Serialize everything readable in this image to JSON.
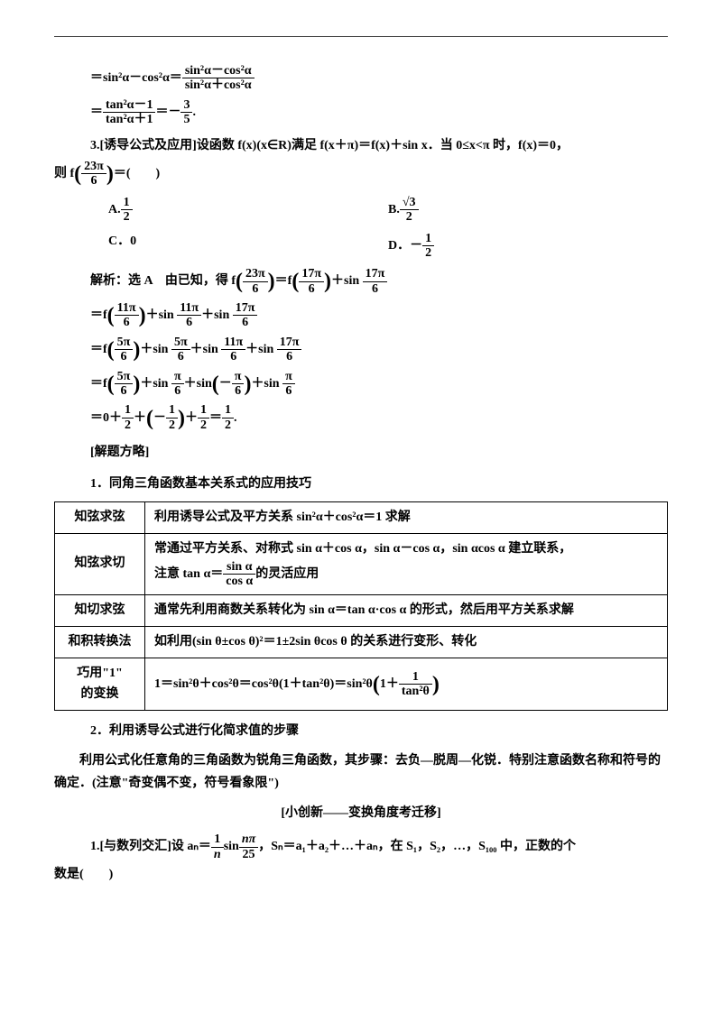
{
  "eq1": {
    "lhs_prefix": "＝sin²α－cos²α＝",
    "frac1_num": "sin²α－cos²α",
    "frac1_den": "sin²α＋cos²α"
  },
  "eq2": {
    "prefix": "＝",
    "frac_num": "tan²α－1",
    "frac_den": "tan²α＋1",
    "mid": "＝－",
    "r_num": "3",
    "r_den": "5",
    "suffix": "."
  },
  "p3": {
    "label": "3.[诱导公式及应用]",
    "text1": "设函数 f(x)(x∈R)满足 f(x＋π)＝f(x)＋sin x．当 0≤x<π 时，f(x)＝0，",
    "text2_pre": "则 f",
    "arg_num": "23π",
    "arg_den": "6",
    "text2_post": "＝(　　)"
  },
  "opts": {
    "A_label": "A.",
    "A_num": "1",
    "A_den": "2",
    "B_label": "B.",
    "B_num": "√3",
    "B_den": "2",
    "C": "C．0",
    "D_label": "D．－",
    "D_num": "1",
    "D_den": "2"
  },
  "sol": {
    "prefix": "解析：选 A　由已知，得 f",
    "s1a_num": "23π",
    "s1a_den": "6",
    "mid1": "＝f",
    "s1b_num": "17π",
    "s1b_den": "6",
    "mid2": "＋sin ",
    "s1c_num": "17π",
    "s1c_den": "6",
    "l2_pre": "＝f",
    "l2a_num": "11π",
    "l2a_den": "6",
    "l2_m1": "＋sin ",
    "l2b_num": "11π",
    "l2b_den": "6",
    "l2_m2": "＋sin ",
    "l2c_num": "17π",
    "l2c_den": "6",
    "l3_pre": "＝f",
    "l3a_num": "5π",
    "l3a_den": "6",
    "l3_m1": "＋sin ",
    "l3b_num": "5π",
    "l3b_den": "6",
    "l3_m2": "＋sin ",
    "l3c_num": "11π",
    "l3c_den": "6",
    "l3_m3": "＋sin ",
    "l3d_num": "17π",
    "l3d_den": "6",
    "l4_pre": "＝f",
    "l4a_num": "5π",
    "l4a_den": "6",
    "l4_m1": "＋sin ",
    "l4b_num": "π",
    "l4b_den": "6",
    "l4_m2": "＋sin",
    "l4_neg": "－",
    "l4c_num": "π",
    "l4c_den": "6",
    "l4_m3": "＋sin ",
    "l4d_num": "π",
    "l4d_den": "6",
    "l5_pre": "＝0＋",
    "l5a_num": "1",
    "l5a_den": "2",
    "l5_m1": "＋",
    "l5_neg": "－",
    "l5b_num": "1",
    "l5b_den": "2",
    "l5_m2": "＋",
    "l5c_num": "1",
    "l5c_den": "2",
    "l5_m3": "＝",
    "l5d_num": "1",
    "l5d_den": "2",
    "l5_end": "."
  },
  "strategy_title": "[解题方略]",
  "sec1_title": "1．同角三角函数基本关系式的应用技巧",
  "table": {
    "r1c1": "知弦求弦",
    "r1c2": "利用诱导公式及平方关系 sin²α＋cos²α＝1 求解",
    "r2c1": "知弦求切",
    "r2c2a": "常通过平方关系、对称式 sin α＋cos α，sin α－cos α，sin αcos α 建立联系，",
    "r2c2b_pre": "注意 tan α＝",
    "r2c2b_num": "sin α",
    "r2c2b_den": "cos α",
    "r2c2b_post": "的灵活应用",
    "r3c1": "知切求弦",
    "r3c2": "通常先利用商数关系转化为 sin α＝tan α·cos α 的形式，然后用平方关系求解",
    "r4c1": "和积转换法",
    "r4c2": "如利用(sin θ±cos θ)²＝1±2sin θcos θ 的关系进行变形、转化",
    "r5c1a": "巧用\"1\"",
    "r5c1b": "的变换",
    "r5c2_pre": "1＝sin²θ＋cos²θ＝cos²θ(1＋tan²θ)＝sin²θ",
    "r5c2_in": "1＋",
    "r5c2_num": "1",
    "r5c2_den": "tan²θ"
  },
  "sec2_title": "2．利用诱导公式进行化简求值的步骤",
  "sec2_body": "利用公式化任意角的三角函数为锐角三角函数，其步骤：去负—脱周—化锐．特别注意函数名称和符号的确定．(注意\"奇变偶不变，符号看象限\")",
  "innov_title": "[小创新——变换角度考迁移]",
  "p1b": {
    "label": "1.[与数列交汇]",
    "pre": "设 aₙ＝",
    "f1_num": "1",
    "f1_den": "n",
    "mid1": "sin",
    "f2_num": "nπ",
    "f2_den": "25",
    "post": "，Sₙ＝a₁＋a₂＋…＋aₙ，在 S₁，S₂，…，S₁₀₀ 中，正数的个",
    "line2": "数是(　　)"
  }
}
